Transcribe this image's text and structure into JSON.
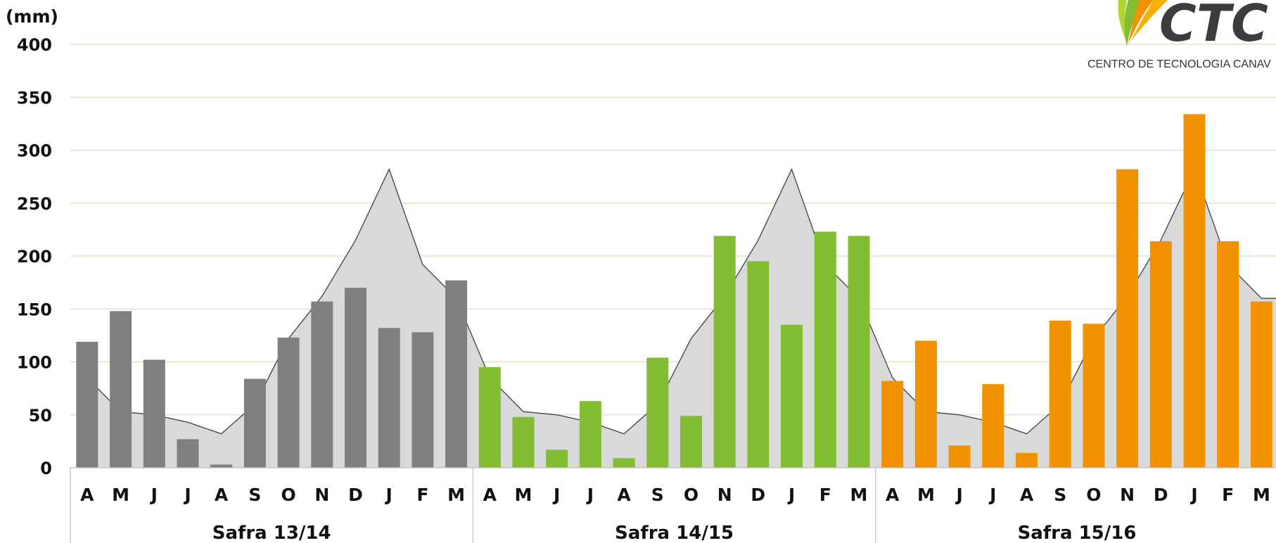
{
  "logo": {
    "name": "CTC",
    "subtitle": "CENTRO DE TECNOLOGIA CANAV"
  },
  "chart_data": {
    "type": "bar",
    "ylabel": "(mm)",
    "ylim": [
      0,
      400
    ],
    "yticks": [
      0,
      50,
      100,
      150,
      200,
      250,
      300,
      350,
      400
    ],
    "grid": true,
    "months": [
      "A",
      "M",
      "J",
      "J",
      "A",
      "S",
      "O",
      "N",
      "D",
      "J",
      "F",
      "M"
    ],
    "normal_area": {
      "description_color": "#d9d9d9",
      "values": [
        85,
        53,
        50,
        43,
        32,
        60,
        122,
        162,
        215,
        282,
        192,
        160
      ]
    },
    "groups": [
      {
        "label": "Safra 13/14",
        "color": "#7f7f7f",
        "values": [
          119,
          148,
          102,
          27,
          3,
          84,
          123,
          157,
          170,
          132,
          128,
          177
        ]
      },
      {
        "label": "Safra 14/15",
        "color": "#82bd33",
        "values": [
          95,
          48,
          17,
          63,
          9,
          104,
          49,
          219,
          195,
          135,
          223,
          219
        ]
      },
      {
        "label": "Safra 15/16",
        "color": "#f39200",
        "values": [
          82,
          120,
          21,
          79,
          14,
          139,
          136,
          282,
          214,
          334,
          214,
          157
        ]
      }
    ]
  }
}
